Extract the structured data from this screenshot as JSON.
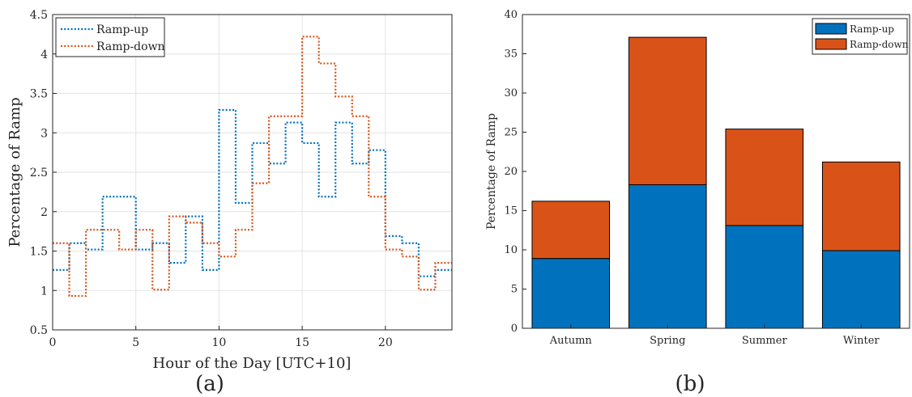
{
  "chart_data": [
    {
      "type": "line",
      "subtitle": "(a)",
      "xlabel": "Hour of the Day [UTC+10]",
      "ylabel": "Percentage of Ramp",
      "xlim": [
        0,
        24
      ],
      "ylim": [
        0.5,
        4.5
      ],
      "xticks": [
        0,
        5,
        10,
        15,
        20
      ],
      "yticks": [
        0.5,
        1,
        1.5,
        2,
        2.5,
        3,
        3.5,
        4,
        4.5
      ],
      "grid": true,
      "legend_position": "top-left",
      "x": [
        0,
        1,
        2,
        3,
        4,
        5,
        6,
        7,
        8,
        9,
        10,
        11,
        12,
        13,
        14,
        15,
        16,
        17,
        18,
        19,
        20,
        21,
        22,
        23
      ],
      "series": [
        {
          "name": "Ramp-up",
          "color": "#0072BD",
          "style": "dotted step",
          "values": [
            1.26,
            1.6,
            1.52,
            2.19,
            2.19,
            1.52,
            1.6,
            1.35,
            1.94,
            1.26,
            3.29,
            2.11,
            2.87,
            2.61,
            3.13,
            2.87,
            2.19,
            3.13,
            2.61,
            2.78,
            1.69,
            1.6,
            1.18,
            1.26
          ]
        },
        {
          "name": "Ramp-down",
          "color": "#D95319",
          "style": "dotted step",
          "values": [
            1.6,
            0.93,
            1.77,
            1.77,
            1.52,
            1.77,
            1.01,
            1.94,
            1.86,
            1.6,
            1.43,
            1.77,
            2.36,
            3.21,
            3.21,
            4.22,
            3.88,
            3.46,
            3.21,
            2.19,
            1.52,
            1.43,
            1.01,
            1.35
          ]
        }
      ]
    },
    {
      "type": "bar",
      "stacked": true,
      "subtitle": "(b)",
      "xlabel": "",
      "ylabel": "Percentage of Ramp",
      "categories": [
        "Autumn",
        "Spring",
        "Summer",
        "Winter"
      ],
      "ylim": [
        0,
        40
      ],
      "yticks": [
        0,
        5,
        10,
        15,
        20,
        25,
        30,
        35,
        40
      ],
      "grid": false,
      "legend_position": "top-right",
      "series": [
        {
          "name": "Ramp-up",
          "color": "#0072BD",
          "values": [
            8.9,
            18.3,
            13.1,
            9.9
          ]
        },
        {
          "name": "Ramp-down",
          "color": "#D95319",
          "values": [
            7.3,
            18.8,
            12.3,
            11.3
          ]
        }
      ]
    }
  ]
}
